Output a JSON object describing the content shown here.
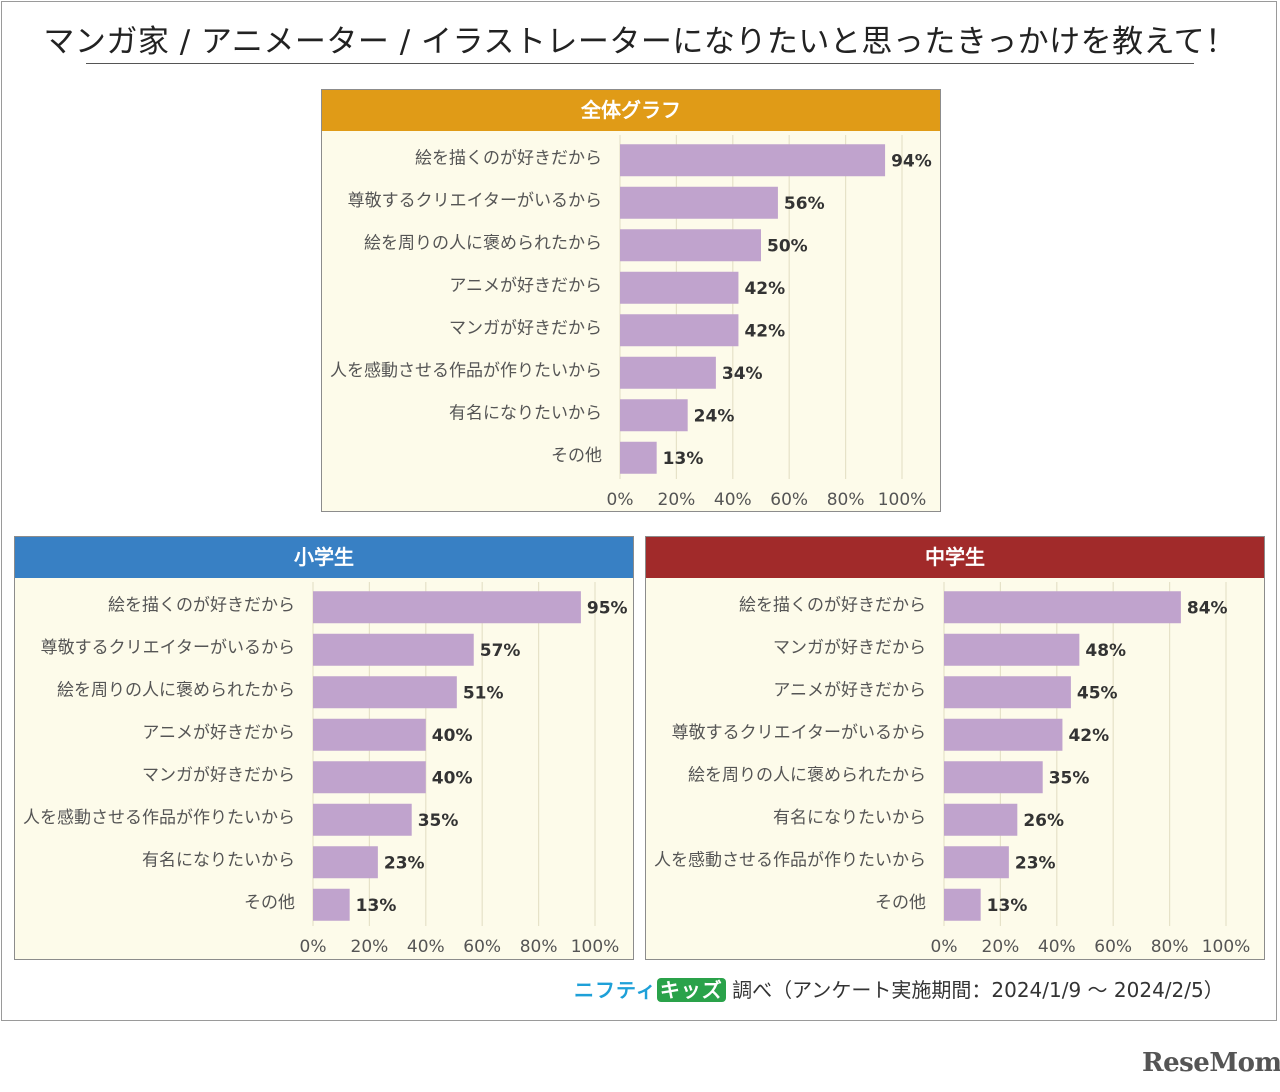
{
  "title": "マンガ家 / アニメーター / イラストレーターになりたいと思ったきっかけを教えて！",
  "source": {
    "brand_part1": "ニフティ",
    "brand_part2": "キッズ",
    "text": "調べ（アンケート実施期間：2024/1/9 ～ 2024/2/5）"
  },
  "logo": "ReseMom",
  "colors": {
    "bar": "#c0a3cd",
    "grid": "#e6e2c8",
    "panel_bg": "#fdfbea",
    "header_overall": "#e09b17",
    "header_elementary": "#3880c4",
    "header_junior": "#a12a2a"
  },
  "chart_data": [
    {
      "type": "bar",
      "orientation": "horizontal",
      "title": "全体グラフ",
      "categories": [
        "絵を描くのが好きだから",
        "尊敬するクリエイターがいるから",
        "絵を周りの人に褒められたから",
        "アニメが好きだから",
        "マンガが好きだから",
        "人を感動させる作品が作りたいから",
        "有名になりたいから",
        "その他"
      ],
      "values": [
        94,
        56,
        50,
        42,
        42,
        34,
        24,
        13
      ],
      "value_labels": [
        "94%",
        "56%",
        "50%",
        "42%",
        "42%",
        "34%",
        "24%",
        "13%"
      ],
      "xlim": [
        0,
        100
      ],
      "xticks": [
        "0%",
        "20%",
        "40%",
        "60%",
        "80%",
        "100%"
      ],
      "grid": true
    },
    {
      "type": "bar",
      "orientation": "horizontal",
      "title": "小学生",
      "categories": [
        "絵を描くのが好きだから",
        "尊敬するクリエイターがいるから",
        "絵を周りの人に褒められたから",
        "アニメが好きだから",
        "マンガが好きだから",
        "人を感動させる作品が作りたいから",
        "有名になりたいから",
        "その他"
      ],
      "values": [
        95,
        57,
        51,
        40,
        40,
        35,
        23,
        13
      ],
      "value_labels": [
        "95%",
        "57%",
        "51%",
        "40%",
        "40%",
        "35%",
        "23%",
        "13%"
      ],
      "xlim": [
        0,
        100
      ],
      "xticks": [
        "0%",
        "20%",
        "40%",
        "60%",
        "80%",
        "100%"
      ],
      "grid": true
    },
    {
      "type": "bar",
      "orientation": "horizontal",
      "title": "中学生",
      "categories": [
        "絵を描くのが好きだから",
        "マンガが好きだから",
        "アニメが好きだから",
        "尊敬するクリエイターがいるから",
        "絵を周りの人に褒められたから",
        "有名になりたいから",
        "人を感動させる作品が作りたいから",
        "その他"
      ],
      "values": [
        84,
        48,
        45,
        42,
        35,
        26,
        23,
        13
      ],
      "value_labels": [
        "84%",
        "48%",
        "45%",
        "42%",
        "35%",
        "26%",
        "23%",
        "13%"
      ],
      "xlim": [
        0,
        100
      ],
      "xticks": [
        "0%",
        "20%",
        "40%",
        "60%",
        "80%",
        "100%"
      ],
      "grid": true
    }
  ]
}
